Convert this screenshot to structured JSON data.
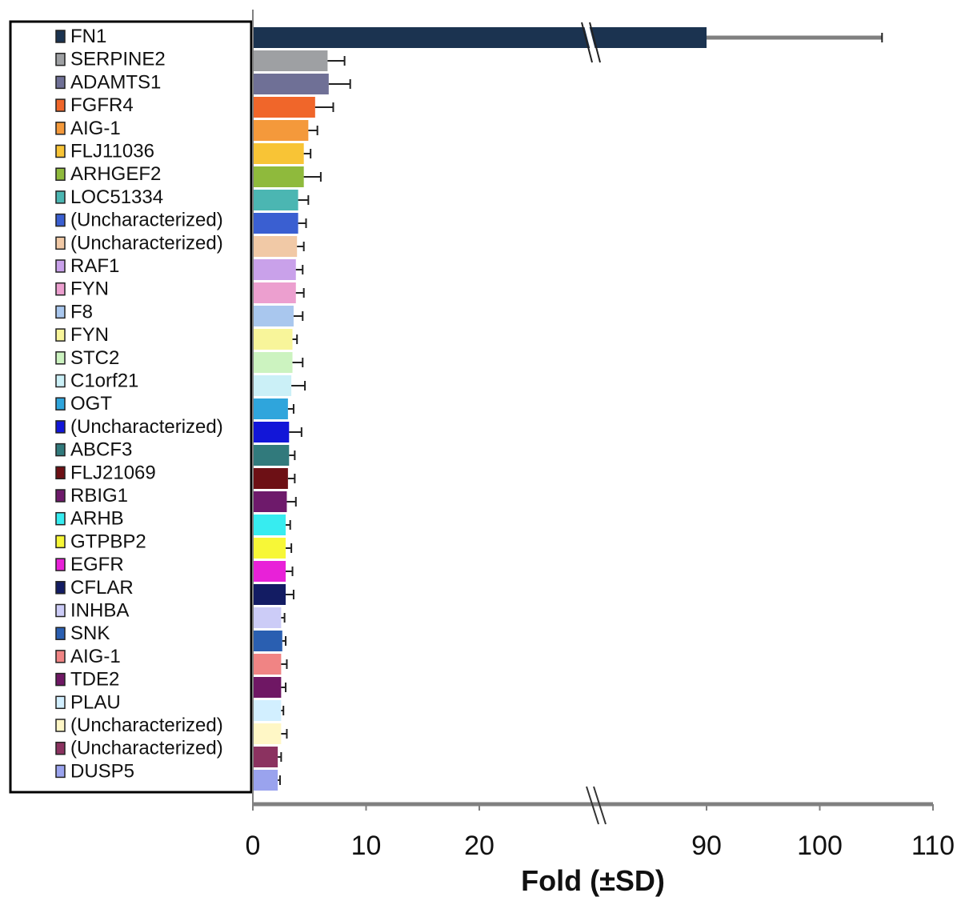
{
  "chart_data": {
    "type": "bar",
    "orientation": "horizontal",
    "xlabel": "Fold (±SD)",
    "axis_break": {
      "from": 20,
      "to": 90
    },
    "x_ticks": [
      "0",
      "10",
      "20",
      "90",
      "100",
      "110"
    ],
    "x_tick_values": [
      0,
      10,
      20,
      90,
      100,
      110
    ],
    "xlim": [
      0,
      110
    ],
    "legend_position": "left",
    "series": [
      {
        "label": "FN1",
        "value": 90.0,
        "sd": 15.5,
        "color": "#1b3350"
      },
      {
        "label": "SERPINE2",
        "value": 6.6,
        "sd": 1.5,
        "color": "#9ea0a3"
      },
      {
        "label": "ADAMTS1",
        "value": 6.7,
        "sd": 1.9,
        "color": "#6f7096"
      },
      {
        "label": "FGFR4",
        "value": 5.5,
        "sd": 1.6,
        "color": "#f0662a"
      },
      {
        "label": "AIG-1",
        "value": 4.9,
        "sd": 0.8,
        "color": "#f4993b"
      },
      {
        "label": "FLJ11036",
        "value": 4.5,
        "sd": 0.6,
        "color": "#f8c436"
      },
      {
        "label": "ARHGEF2",
        "value": 4.5,
        "sd": 1.5,
        "color": "#8fba3c"
      },
      {
        "label": "LOC51334",
        "value": 4.0,
        "sd": 0.9,
        "color": "#4bb6b2"
      },
      {
        "label": "(Uncharacterized)",
        "value": 4.0,
        "sd": 0.7,
        "color": "#3a5fd1"
      },
      {
        "label": "(Uncharacterized)",
        "value": 3.9,
        "sd": 0.6,
        "color": "#f1c9a6"
      },
      {
        "label": "RAF1",
        "value": 3.8,
        "sd": 0.6,
        "color": "#c9a1ea"
      },
      {
        "label": "FYN",
        "value": 3.8,
        "sd": 0.7,
        "color": "#ec9fcf"
      },
      {
        "label": "F8",
        "value": 3.6,
        "sd": 0.8,
        "color": "#a9c7ee"
      },
      {
        "label": "FYN",
        "value": 3.5,
        "sd": 0.4,
        "color": "#f8f59a"
      },
      {
        "label": "STC2",
        "value": 3.5,
        "sd": 0.9,
        "color": "#ccf3c0"
      },
      {
        "label": "C1orf21",
        "value": 3.4,
        "sd": 1.2,
        "color": "#cbf0f7"
      },
      {
        "label": "OGT",
        "value": 3.1,
        "sd": 0.5,
        "color": "#2fa5dc"
      },
      {
        "label": "(Uncharacterized)",
        "value": 3.2,
        "sd": 1.1,
        "color": "#1216d8"
      },
      {
        "label": "ABCF3",
        "value": 3.2,
        "sd": 0.5,
        "color": "#317a7c"
      },
      {
        "label": "FLJ21069",
        "value": 3.1,
        "sd": 0.6,
        "color": "#6d1015"
      },
      {
        "label": "RBIG1",
        "value": 3.0,
        "sd": 0.8,
        "color": "#6e1a6b"
      },
      {
        "label": "ARHB",
        "value": 2.9,
        "sd": 0.4,
        "color": "#37ecf0"
      },
      {
        "label": "GTPBP2",
        "value": 2.9,
        "sd": 0.5,
        "color": "#f7f737"
      },
      {
        "label": "EGFR",
        "value": 2.9,
        "sd": 0.6,
        "color": "#e821d8"
      },
      {
        "label": "CFLAR",
        "value": 2.9,
        "sd": 0.7,
        "color": "#131c63"
      },
      {
        "label": "INHBA",
        "value": 2.5,
        "sd": 0.3,
        "color": "#ccccf7"
      },
      {
        "label": "SNK",
        "value": 2.6,
        "sd": 0.3,
        "color": "#2a5fb1"
      },
      {
        "label": "AIG-1",
        "value": 2.5,
        "sd": 0.5,
        "color": "#f08484"
      },
      {
        "label": "TDE2",
        "value": 2.5,
        "sd": 0.4,
        "color": "#6f1764"
      },
      {
        "label": "PLAU",
        "value": 2.5,
        "sd": 0.2,
        "color": "#d2efff"
      },
      {
        "label": "(Uncharacterized)",
        "value": 2.5,
        "sd": 0.5,
        "color": "#fff7c6"
      },
      {
        "label": "(Uncharacterized)",
        "value": 2.2,
        "sd": 0.3,
        "color": "#8b3260"
      },
      {
        "label": "DUSP5",
        "value": 2.2,
        "sd": 0.2,
        "color": "#9aa3ee"
      }
    ]
  }
}
